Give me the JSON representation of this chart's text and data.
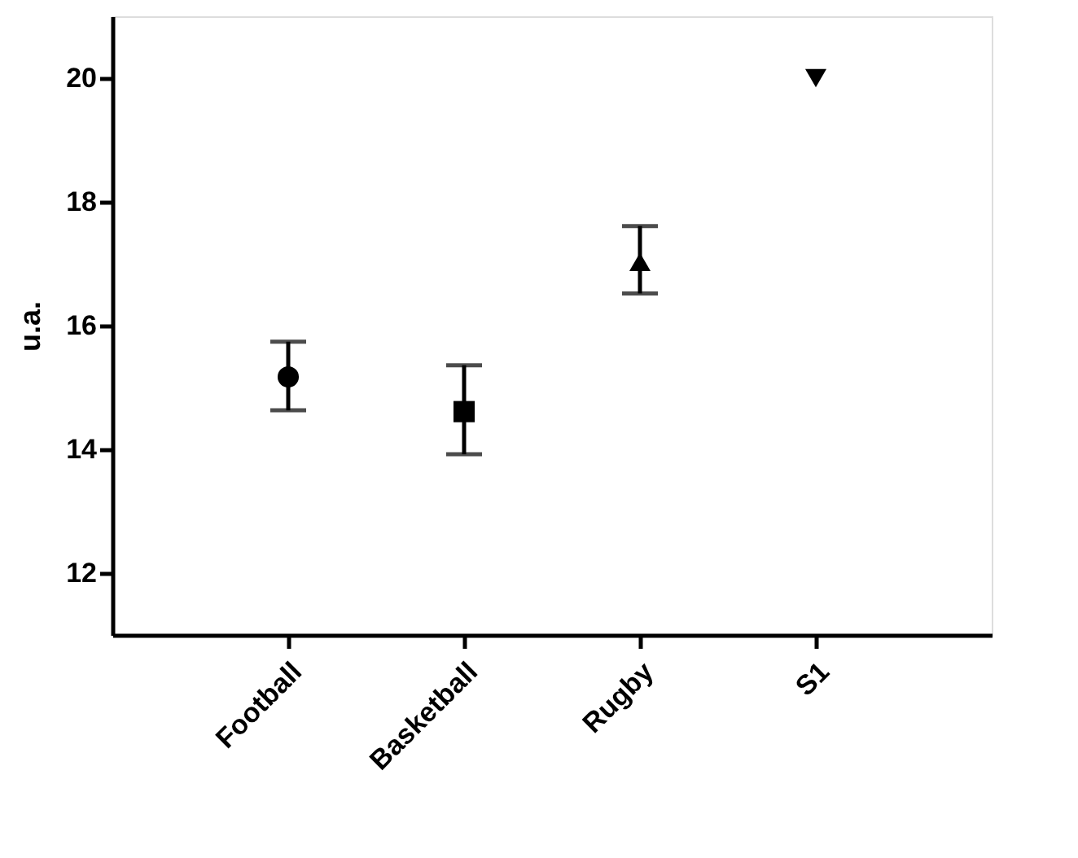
{
  "chart_data": {
    "type": "scatter",
    "ylabel": "u.a.",
    "categories": [
      "Football",
      "Basketball",
      "Rugby",
      "S1"
    ],
    "ylim": [
      11,
      21
    ],
    "yticks": [
      12,
      14,
      16,
      18,
      20
    ],
    "grid": false,
    "series": [
      {
        "color": "#000000",
        "marker": "circle",
        "values": [
          15.17,
          null,
          null,
          null
        ],
        "errors": [
          [
            14.63,
            15.74
          ],
          null,
          null,
          null
        ]
      },
      {
        "color": "#000000",
        "marker": "square",
        "values": [
          null,
          14.61,
          null,
          null
        ],
        "errors": [
          null,
          [
            13.92,
            15.36
          ],
          null,
          null
        ]
      },
      {
        "color": "#000000",
        "marker": "triangle",
        "values": [
          null,
          null,
          17.03,
          null
        ],
        "errors": [
          null,
          null,
          [
            16.52,
            17.61
          ],
          null
        ]
      },
      {
        "color": "#000000",
        "marker": "triangle-down",
        "values": [
          null,
          null,
          null,
          20
        ],
        "errors": [
          null,
          null,
          null,
          null
        ]
      }
    ]
  }
}
